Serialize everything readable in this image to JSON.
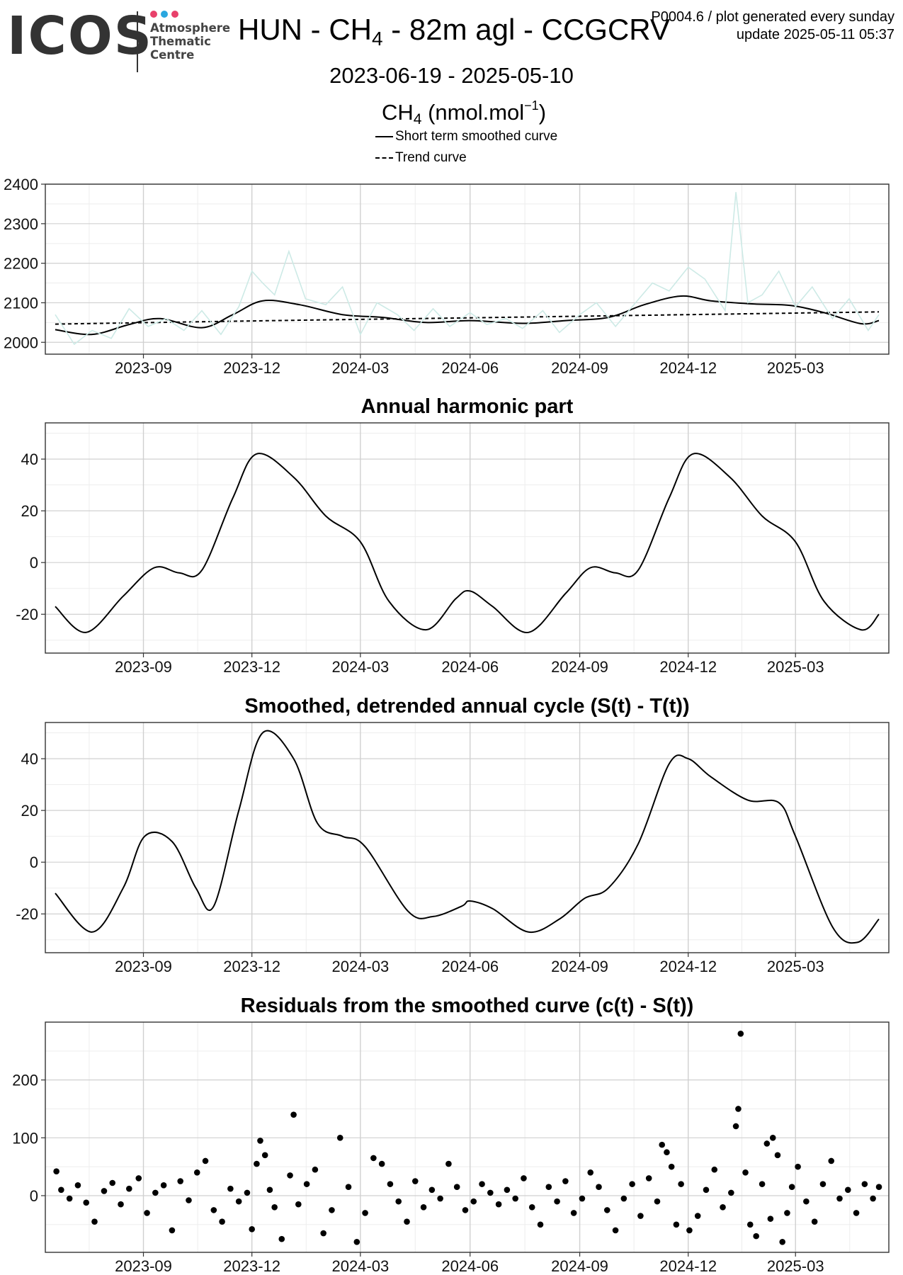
{
  "header": {
    "logo_text": "ICOS",
    "logo_sub": [
      "Atmosphere",
      "Thematic",
      "Centre"
    ],
    "logo_dot_colors": [
      "#e8416b",
      "#2aa7df",
      "#e8416b"
    ],
    "title_prefix": "HUN - CH",
    "title_sub": "4",
    "title_suffix": " - 82m agl - CCGCRV",
    "code_line1": "P0004.6 / plot generated every sunday",
    "code_line2": "update  2025-05-11 05:37",
    "date_range": "2023-06-19 - 2025-05-10",
    "species": "CH",
    "species_sub": "4",
    "species_unit": " (nmol.mol",
    "species_sup": "−1",
    "species_close": ")",
    "legend": [
      {
        "label": "Short term smoothed curve",
        "style": "solid"
      },
      {
        "label": "Trend curve",
        "style": "dashed"
      }
    ]
  },
  "colors": {
    "raw_series": "#cdeae6",
    "curve": "#000000",
    "grid_major": "#d0d0d0",
    "grid_minor": "#ededed"
  },
  "chart_data": [
    {
      "type": "line",
      "title": "",
      "x_domain": [
        "2023-06-19",
        "2025-05-10"
      ],
      "x_ticks": [
        "2023-09",
        "2023-12",
        "2024-03",
        "2024-06",
        "2024-09",
        "2024-12",
        "2025-03"
      ],
      "ylim": [
        1970,
        2400
      ],
      "y_ticks": [
        2000,
        2100,
        2200,
        2300,
        2400
      ],
      "grid": true,
      "series": [
        {
          "name": "Short term smoothed curve",
          "style": "solid",
          "x": [
            "2023-06-19",
            "2023-07-20",
            "2023-08-20",
            "2023-09-15",
            "2023-10-20",
            "2023-11-15",
            "2023-12-10",
            "2024-01-10",
            "2024-02-15",
            "2024-03-20",
            "2024-04-25",
            "2024-06-01",
            "2024-07-15",
            "2024-08-20",
            "2024-09-25",
            "2024-10-25",
            "2024-11-25",
            "2024-12-20",
            "2025-01-25",
            "2025-02-25",
            "2025-03-25",
            "2025-04-25",
            "2025-05-10"
          ],
          "values": [
            2032,
            2020,
            2045,
            2060,
            2037,
            2070,
            2105,
            2095,
            2070,
            2063,
            2050,
            2055,
            2048,
            2055,
            2063,
            2095,
            2117,
            2105,
            2097,
            2093,
            2075,
            2047,
            2055
          ]
        },
        {
          "name": "Trend curve",
          "style": "dashed",
          "x": [
            "2023-06-19",
            "2023-12-01",
            "2024-06-01",
            "2024-12-01",
            "2025-05-10"
          ],
          "values": [
            2046,
            2054,
            2062,
            2070,
            2077
          ]
        },
        {
          "style": "raw",
          "x": [
            "2023-06-19",
            "2023-07-05",
            "2023-07-20",
            "2023-08-05",
            "2023-08-20",
            "2023-09-05",
            "2023-09-20",
            "2023-10-05",
            "2023-10-20",
            "2023-11-05",
            "2023-11-20",
            "2023-12-01",
            "2023-12-10",
            "2023-12-20",
            "2024-01-01",
            "2024-01-15",
            "2024-02-01",
            "2024-02-15",
            "2024-03-01",
            "2024-03-15",
            "2024-04-01",
            "2024-04-15",
            "2024-05-01",
            "2024-05-15",
            "2024-06-01",
            "2024-06-15",
            "2024-07-01",
            "2024-07-15",
            "2024-08-01",
            "2024-08-15",
            "2024-09-01",
            "2024-09-15",
            "2024-10-01",
            "2024-10-15",
            "2024-11-01",
            "2024-11-15",
            "2024-12-01",
            "2024-12-15",
            "2025-01-01",
            "2025-01-10",
            "2025-01-20",
            "2025-02-01",
            "2025-02-15",
            "2025-03-01",
            "2025-03-15",
            "2025-04-01",
            "2025-04-15",
            "2025-05-01",
            "2025-05-10"
          ],
          "values": [
            2070,
            1995,
            2030,
            2010,
            2085,
            2040,
            2060,
            2030,
            2080,
            2020,
            2090,
            2180,
            2150,
            2120,
            2230,
            2110,
            2095,
            2140,
            2020,
            2100,
            2070,
            2030,
            2085,
            2040,
            2075,
            2045,
            2060,
            2035,
            2080,
            2025,
            2070,
            2100,
            2040,
            2090,
            2150,
            2130,
            2190,
            2160,
            2080,
            2380,
            2100,
            2120,
            2180,
            2090,
            2140,
            2060,
            2110,
            2030,
            2070
          ]
        }
      ]
    },
    {
      "type": "line",
      "title": "Annual harmonic part",
      "x_domain": [
        "2023-06-19",
        "2025-05-10"
      ],
      "x_ticks": [
        "2023-09",
        "2023-12",
        "2024-03",
        "2024-06",
        "2024-09",
        "2024-12",
        "2025-03"
      ],
      "ylim": [
        -35,
        54
      ],
      "y_ticks": [
        -20,
        0,
        20,
        40
      ],
      "grid": true,
      "series": [
        {
          "style": "solid",
          "x": [
            "2023-06-19",
            "2023-07-15",
            "2023-08-15",
            "2023-09-10",
            "2023-10-01",
            "2023-10-20",
            "2023-11-15",
            "2023-12-05",
            "2024-01-05",
            "2024-02-01",
            "2024-03-01",
            "2024-03-25",
            "2024-04-25",
            "2024-05-20",
            "2024-06-01",
            "2024-06-20",
            "2024-07-20",
            "2024-08-20",
            "2024-09-10",
            "2024-10-01",
            "2024-10-20",
            "2024-11-15",
            "2024-12-05",
            "2025-01-05",
            "2025-02-01",
            "2025-03-01",
            "2025-03-25",
            "2025-04-25",
            "2025-05-10"
          ],
          "values": [
            -17,
            -27,
            -13,
            -2,
            -4,
            -3,
            25,
            42,
            33,
            18,
            8,
            -15,
            -26,
            -14,
            -11,
            -17,
            -27,
            -12,
            -2,
            -4,
            -3,
            25,
            42,
            33,
            18,
            8,
            -15,
            -26,
            -20
          ]
        }
      ]
    },
    {
      "type": "line",
      "title": "Smoothed, detrended annual cycle (S(t) - T(t))",
      "x_domain": [
        "2023-06-19",
        "2025-05-10"
      ],
      "x_ticks": [
        "2023-09",
        "2023-12",
        "2024-03",
        "2024-06",
        "2024-09",
        "2024-12",
        "2025-03"
      ],
      "ylim": [
        -35,
        54
      ],
      "y_ticks": [
        -20,
        0,
        20,
        40
      ],
      "grid": true,
      "series": [
        {
          "style": "solid",
          "x": [
            "2023-06-19",
            "2023-07-20",
            "2023-08-15",
            "2023-09-02",
            "2023-09-25",
            "2023-10-15",
            "2023-10-30",
            "2023-11-20",
            "2023-12-10",
            "2024-01-05",
            "2024-01-25",
            "2024-02-15",
            "2024-03-05",
            "2024-04-10",
            "2024-05-01",
            "2024-05-25",
            "2024-06-01",
            "2024-06-20",
            "2024-07-20",
            "2024-08-15",
            "2024-09-05",
            "2024-09-25",
            "2024-10-20",
            "2024-11-15",
            "2024-12-01",
            "2024-12-20",
            "2025-01-20",
            "2025-02-15",
            "2025-03-01",
            "2025-04-01",
            "2025-04-22",
            "2025-05-10"
          ],
          "values": [
            -12,
            -27,
            -10,
            10,
            8,
            -10,
            -17,
            20,
            50,
            40,
            15,
            10,
            6,
            -19,
            -21,
            -17,
            -15,
            -18,
            -27,
            -22,
            -14,
            -10,
            7,
            38,
            40,
            33,
            24,
            23,
            10,
            -25,
            -31,
            -22
          ]
        }
      ]
    },
    {
      "type": "scatter",
      "title": "Residuals from the smoothed curve (c(t) - S(t))",
      "x_domain": [
        "2023-06-19",
        "2025-05-10"
      ],
      "x_ticks": [
        "2023-09",
        "2023-12",
        "2024-03",
        "2024-06",
        "2024-09",
        "2024-12",
        "2025-03"
      ],
      "ylim": [
        -98,
        300
      ],
      "y_ticks": [
        0,
        100,
        200
      ],
      "grid": true,
      "series": [
        {
          "style": "points",
          "x": [
            "2023-06-20",
            "2023-06-24",
            "2023-07-01",
            "2023-07-08",
            "2023-07-15",
            "2023-07-22",
            "2023-07-30",
            "2023-08-06",
            "2023-08-13",
            "2023-08-20",
            "2023-08-28",
            "2023-09-04",
            "2023-09-11",
            "2023-09-18",
            "2023-09-25",
            "2023-10-02",
            "2023-10-09",
            "2023-10-16",
            "2023-10-23",
            "2023-10-30",
            "2023-11-06",
            "2023-11-13",
            "2023-11-20",
            "2023-11-27",
            "2023-12-01",
            "2023-12-05",
            "2023-12-08",
            "2023-12-12",
            "2023-12-16",
            "2023-12-20",
            "2023-12-26",
            "2024-01-02",
            "2024-01-05",
            "2024-01-09",
            "2024-01-16",
            "2024-01-23",
            "2024-01-30",
            "2024-02-06",
            "2024-02-13",
            "2024-02-20",
            "2024-02-27",
            "2024-03-05",
            "2024-03-12",
            "2024-03-19",
            "2024-03-26",
            "2024-04-02",
            "2024-04-09",
            "2024-04-16",
            "2024-04-23",
            "2024-04-30",
            "2024-05-07",
            "2024-05-14",
            "2024-05-21",
            "2024-05-28",
            "2024-06-04",
            "2024-06-11",
            "2024-06-18",
            "2024-06-25",
            "2024-07-02",
            "2024-07-09",
            "2024-07-16",
            "2024-07-23",
            "2024-07-30",
            "2024-08-06",
            "2024-08-13",
            "2024-08-20",
            "2024-08-27",
            "2024-09-03",
            "2024-09-10",
            "2024-09-17",
            "2024-09-24",
            "2024-10-01",
            "2024-10-08",
            "2024-10-15",
            "2024-10-22",
            "2024-10-29",
            "2024-11-05",
            "2024-11-09",
            "2024-11-13",
            "2024-11-17",
            "2024-11-21",
            "2024-11-25",
            "2024-12-02",
            "2024-12-09",
            "2024-12-16",
            "2024-12-23",
            "2024-12-30",
            "2025-01-06",
            "2025-01-10",
            "2025-01-12",
            "2025-01-14",
            "2025-01-18",
            "2025-01-22",
            "2025-01-27",
            "2025-02-01",
            "2025-02-05",
            "2025-02-08",
            "2025-02-10",
            "2025-02-14",
            "2025-02-18",
            "2025-02-22",
            "2025-02-26",
            "2025-03-03",
            "2025-03-10",
            "2025-03-17",
            "2025-03-24",
            "2025-03-31",
            "2025-04-07",
            "2025-04-14",
            "2025-04-21",
            "2025-04-28",
            "2025-05-05",
            "2025-05-10"
          ],
          "values": [
            42,
            10,
            -5,
            18,
            -12,
            -45,
            8,
            22,
            -15,
            12,
            30,
            -30,
            5,
            18,
            -60,
            25,
            -8,
            40,
            60,
            -25,
            -45,
            12,
            -10,
            5,
            -58,
            55,
            95,
            70,
            10,
            -20,
            -75,
            35,
            140,
            -15,
            20,
            45,
            -65,
            -25,
            100,
            15,
            -80,
            -30,
            65,
            55,
            20,
            -10,
            -45,
            25,
            -20,
            10,
            -5,
            55,
            15,
            -25,
            -10,
            20,
            5,
            -15,
            10,
            -5,
            30,
            -20,
            -50,
            15,
            -10,
            25,
            -30,
            -5,
            40,
            15,
            -25,
            -60,
            -5,
            20,
            -35,
            30,
            -10,
            88,
            75,
            50,
            -50,
            20,
            -60,
            -35,
            10,
            45,
            -20,
            5,
            120,
            150,
            280,
            40,
            -50,
            -70,
            20,
            90,
            -40,
            100,
            70,
            -80,
            -30,
            15,
            50,
            -10,
            -45,
            20,
            60,
            -5,
            10,
            -30,
            20,
            -5,
            15
          ]
        }
      ]
    }
  ]
}
